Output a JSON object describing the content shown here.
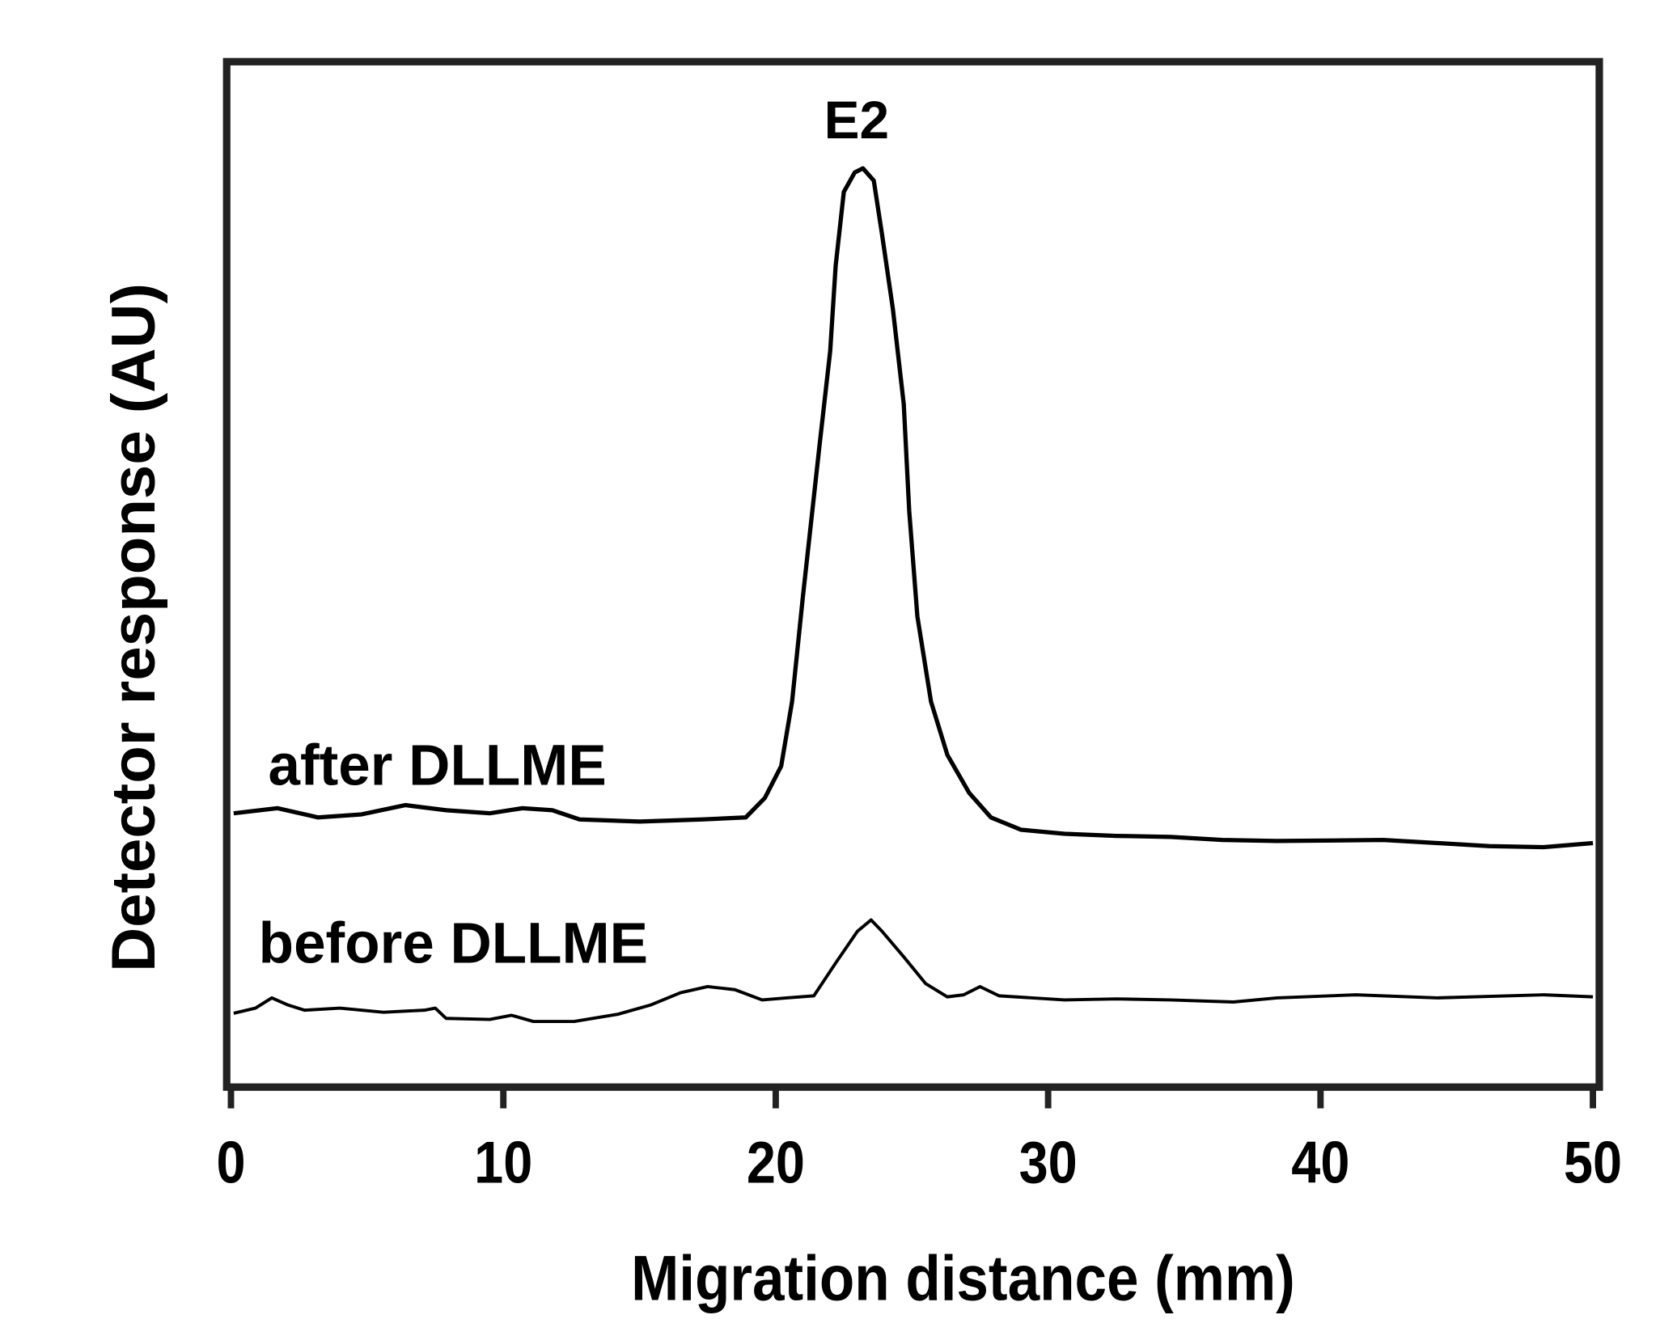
{
  "chart_data": {
    "type": "line",
    "title": "",
    "xlabel": "Migration distance (mm)",
    "ylabel": "Detector response (AU)",
    "xlim": [
      0,
      50
    ],
    "ylim": [
      0,
      100
    ],
    "xticks": [
      "0",
      "10",
      "20",
      "30",
      "40",
      "50"
    ],
    "xtick_values": [
      0,
      10,
      20,
      30,
      40,
      50
    ],
    "grid": false,
    "annotations": [
      {
        "text": "E2",
        "x": 23.2,
        "y": 95
      }
    ],
    "series": [
      {
        "name": "after DLLME",
        "label_pos": {
          "x": 1.4,
          "y": 31
        },
        "x": [
          0.1,
          1.7,
          3.2,
          4.8,
          6.4,
          7.9,
          9.5,
          10.7,
          11.8,
          12.8,
          15.0,
          17.3,
          18.9,
          19.6,
          20.2,
          20.6,
          21.0,
          21.6,
          22.0,
          22.2,
          22.5,
          22.9,
          23.2,
          23.6,
          23.9,
          24.3,
          24.7,
          24.9,
          25.2,
          25.7,
          26.3,
          27.1,
          27.9,
          29.0,
          30.6,
          32.5,
          34.5,
          36.4,
          38.4,
          42.3,
          44.3,
          46.2,
          48.2,
          50.0
        ],
        "y": [
          26.7,
          27.2,
          26.3,
          26.6,
          27.5,
          27.0,
          26.7,
          27.2,
          27.0,
          26.1,
          25.9,
          26.1,
          26.3,
          28.2,
          31.3,
          37.6,
          47.9,
          62.4,
          71.8,
          80.1,
          87.3,
          89.2,
          89.6,
          88.4,
          83.2,
          75.9,
          66.6,
          56.2,
          45.9,
          37.6,
          32.4,
          28.7,
          26.3,
          25.1,
          24.7,
          24.5,
          24.4,
          24.1,
          24.0,
          24.1,
          23.8,
          23.5,
          23.4,
          23.8
        ]
      },
      {
        "name": "before DLLME",
        "label_pos": {
          "x": 1.0,
          "y": 13.7
        },
        "x": [
          0.1,
          0.9,
          1.5,
          2.1,
          2.7,
          4.0,
          5.6,
          7.1,
          7.5,
          7.9,
          9.5,
          10.3,
          11.1,
          12.6,
          14.2,
          15.4,
          16.5,
          17.5,
          18.5,
          19.5,
          20.4,
          21.4,
          22.2,
          23.0,
          23.5,
          23.9,
          24.7,
          25.5,
          26.3,
          26.9,
          27.5,
          28.2,
          30.6,
          32.5,
          34.5,
          36.8,
          38.4,
          41.3,
          44.3,
          48.2,
          50.0
        ],
        "y": [
          7.2,
          7.7,
          8.7,
          8.0,
          7.5,
          7.7,
          7.3,
          7.5,
          7.7,
          6.7,
          6.6,
          7.0,
          6.4,
          6.4,
          7.1,
          8.0,
          9.2,
          9.8,
          9.5,
          8.5,
          8.7,
          8.9,
          12.1,
          15.2,
          16.3,
          15.2,
          12.7,
          10.1,
          8.8,
          9.0,
          9.8,
          8.9,
          8.5,
          8.6,
          8.5,
          8.3,
          8.7,
          9.0,
          8.7,
          9.0,
          8.8
        ]
      }
    ]
  }
}
